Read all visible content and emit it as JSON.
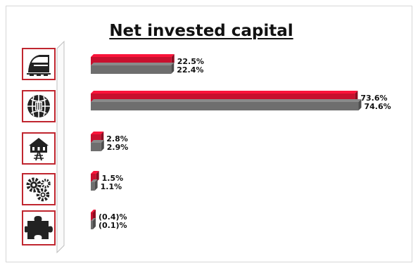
{
  "title": "Net invested capital",
  "segments": [
    {
      "icon": "train-icon"
    },
    {
      "icon": "globe-network-icon"
    },
    {
      "icon": "station-building-icon"
    },
    {
      "icon": "gears-icon"
    },
    {
      "icon": "puzzle-piece-icon"
    }
  ],
  "colors": {
    "series_a": "#c8102e",
    "series_b": "#6e6e6e",
    "border": "#c0262f"
  },
  "chart_data": {
    "type": "bar",
    "orientation": "horizontal",
    "categories_are_icons": true,
    "unit": "%",
    "series": [
      {
        "values": [
          22.5,
          73.6,
          2.8,
          1.5,
          -0.4
        ],
        "labels": [
          "22.5%",
          "73.6%",
          "2.8%",
          "1.5%",
          "(0.4)%"
        ]
      },
      {
        "values": [
          22.4,
          74.6,
          2.9,
          1.1,
          -0.1
        ],
        "labels": [
          "22.4%",
          "74.6%",
          "2.9%",
          "1.1%",
          "(0.1)%"
        ]
      }
    ],
    "xlim": [
      0,
      80
    ],
    "grid": false,
    "legend": "none"
  }
}
